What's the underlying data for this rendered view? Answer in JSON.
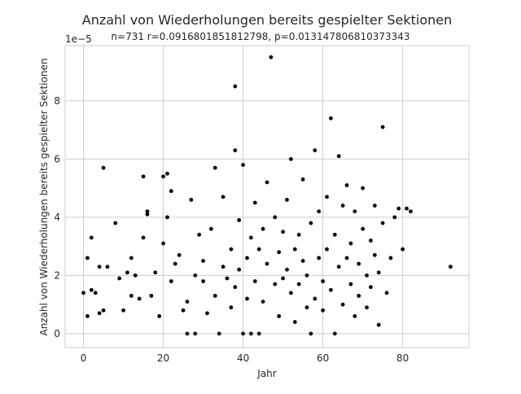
{
  "chart_data": {
    "type": "scatter",
    "title": "Anzahl von Wiederholungen bereits gespielter Sektionen",
    "subtitle": "n=731 r=0.0916801851812798, p=0.013147806810373343",
    "xlabel": "Jahr",
    "ylabel": "Anzahl von Wiederholungen bereits gespielter Sektionen",
    "offset_label": "1e−5",
    "xlim": [
      -4.6,
      96.6
    ],
    "ylim": [
      -0.48,
      9.9
    ],
    "y_scale_factor": 1e-05,
    "xticks": [
      0,
      20,
      40,
      60,
      80
    ],
    "xtick_labels": [
      "0",
      "20",
      "40",
      "60",
      "80"
    ],
    "yticks": [
      0,
      2,
      4,
      6,
      8
    ],
    "ytick_labels": [
      "0",
      "2",
      "4",
      "6",
      "8"
    ],
    "grid": true,
    "legend": "none",
    "marker_color": "#000000",
    "grid_color": "#cccccc",
    "axes_edge_color": "#cccccc",
    "x": [
      0,
      1,
      1,
      2,
      2,
      3,
      4,
      4,
      5,
      5,
      6,
      8,
      9,
      10,
      11,
      12,
      12,
      13,
      14,
      15,
      15,
      16,
      16,
      17,
      18,
      19,
      20,
      20,
      21,
      21,
      22,
      22,
      23,
      24,
      25,
      26,
      26,
      27,
      28,
      28,
      29,
      30,
      30,
      31,
      32,
      33,
      33,
      34,
      35,
      35,
      36,
      37,
      37,
      38,
      38,
      38,
      39,
      39,
      40,
      40,
      41,
      41,
      42,
      42,
      43,
      43,
      44,
      44,
      45,
      45,
      46,
      46,
      47,
      48,
      48,
      49,
      49,
      50,
      50,
      51,
      51,
      52,
      52,
      53,
      53,
      54,
      54,
      55,
      55,
      56,
      56,
      57,
      57,
      58,
      58,
      59,
      59,
      60,
      60,
      61,
      61,
      62,
      62,
      63,
      63,
      64,
      64,
      65,
      65,
      66,
      66,
      67,
      67,
      68,
      68,
      69,
      69,
      70,
      70,
      71,
      71,
      72,
      72,
      73,
      73,
      74,
      74,
      75,
      75,
      76,
      77,
      78,
      79,
      80,
      81,
      82,
      92
    ],
    "y": [
      1.4,
      0.6,
      2.6,
      1.5,
      3.3,
      1.4,
      0.7,
      2.3,
      5.7,
      0.8,
      2.3,
      3.8,
      1.9,
      0.8,
      2.1,
      1.3,
      2.6,
      2.0,
      1.2,
      5.4,
      3.3,
      4.1,
      4.2,
      1.3,
      2.1,
      0.6,
      3.1,
      5.4,
      4.0,
      5.5,
      1.8,
      4.9,
      2.4,
      2.7,
      0.8,
      1.1,
      0.0,
      4.6,
      2.0,
      0.0,
      3.4,
      1.8,
      2.5,
      0.7,
      3.6,
      1.3,
      5.7,
      0.0,
      2.3,
      4.7,
      1.9,
      2.9,
      0.9,
      8.5,
      6.3,
      1.6,
      2.2,
      3.9,
      5.8,
      0.0,
      2.6,
      1.2,
      3.3,
      0.0,
      1.8,
      4.5,
      2.9,
      0.0,
      3.6,
      1.1,
      2.4,
      5.2,
      9.5,
      1.7,
      4.0,
      2.8,
      0.6,
      3.5,
      1.9,
      2.2,
      4.6,
      1.4,
      6.0,
      2.9,
      0.4,
      3.4,
      1.7,
      2.5,
      5.3,
      0.9,
      2.0,
      3.8,
      0.0,
      6.3,
      1.2,
      2.6,
      4.2,
      1.8,
      0.8,
      2.9,
      4.7,
      7.4,
      1.5,
      3.4,
      0.0,
      2.3,
      6.1,
      1.0,
      4.4,
      2.6,
      5.1,
      1.7,
      3.1,
      0.6,
      4.2,
      2.4,
      1.3,
      3.6,
      5.0,
      2.0,
      0.9,
      3.2,
      1.6,
      4.4,
      2.7,
      0.3,
      2.1,
      7.1,
      3.8,
      1.4,
      2.6,
      4.0,
      4.3,
      2.9,
      4.3,
      4.2,
      2.3
    ]
  }
}
